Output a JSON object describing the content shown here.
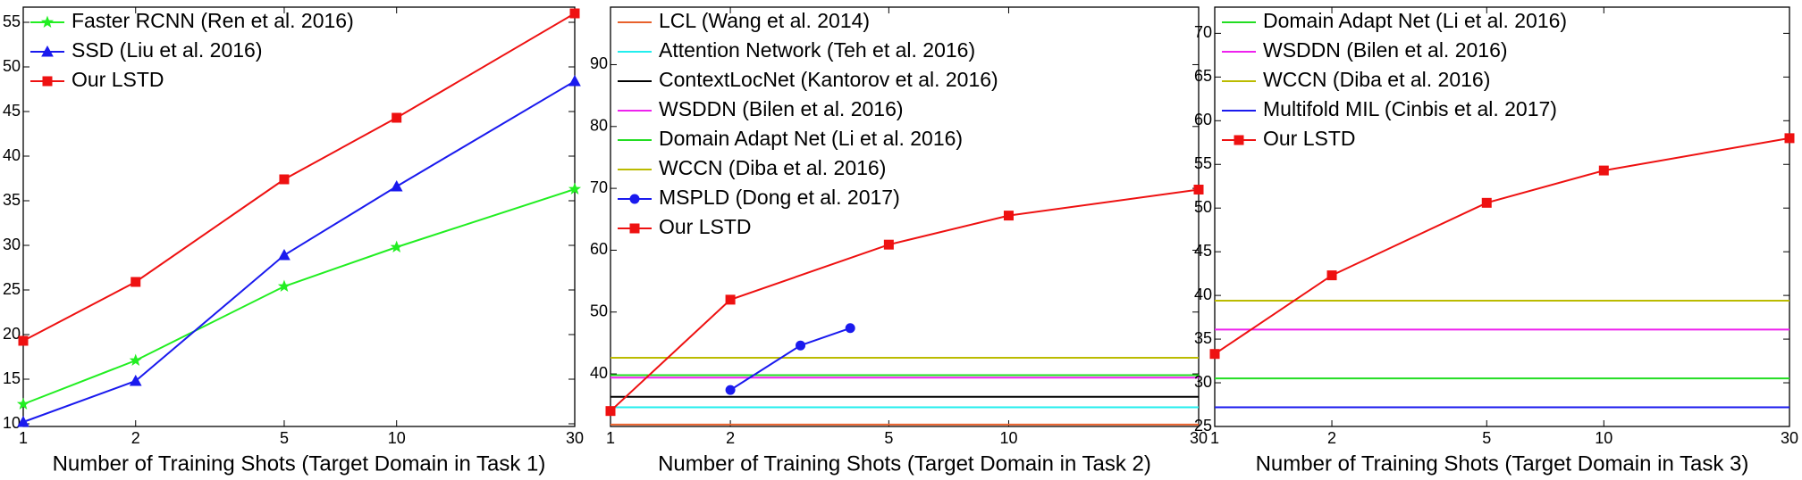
{
  "chart_data": [
    {
      "type": "line",
      "xlabel": "Number of Training Shots (Target Domain in Task 1)",
      "xscale": "log",
      "xlim": [
        1,
        30
      ],
      "xticks": [
        1,
        2,
        5,
        10,
        30
      ],
      "ylim": [
        9.7,
        56.7
      ],
      "yticks": [
        10,
        15,
        20,
        25,
        30,
        35,
        40,
        45,
        50,
        55
      ],
      "legend": "upper left",
      "series": [
        {
          "name": "Faster RCNN (Ren et al. 2016)",
          "color": "#22ee22",
          "marker": "star",
          "x": [
            1,
            2,
            5,
            10,
            30
          ],
          "values": [
            12.2,
            17.1,
            25.4,
            29.8,
            36.3
          ]
        },
        {
          "name": "SSD (Liu et al. 2016)",
          "color": "#1a1aee",
          "marker": "triangle",
          "x": [
            1,
            2,
            5,
            10,
            30
          ],
          "values": [
            10.2,
            14.8,
            28.9,
            36.6,
            48.4
          ]
        },
        {
          "name": "Our LSTD",
          "color": "#ee1111",
          "marker": "square",
          "x": [
            1,
            2,
            5,
            10,
            30
          ],
          "values": [
            19.3,
            25.9,
            37.4,
            44.3,
            56.0
          ]
        }
      ]
    },
    {
      "type": "line",
      "xlabel": "Number of Training Shots (Target Domain in Task 2)",
      "xscale": "log",
      "xlim": [
        1,
        30
      ],
      "xticks": [
        1,
        2,
        5,
        10,
        30
      ],
      "ylim": [
        31.5,
        99.3
      ],
      "yticks": [
        40,
        50,
        60,
        70,
        80,
        90
      ],
      "legend": "upper left",
      "series": [
        {
          "name": "LCL (Wang et al. 2014)",
          "color": "#e8612c",
          "marker": "none",
          "x": [
            1,
            30
          ],
          "values": [
            31.8,
            31.8
          ]
        },
        {
          "name": "Attention Network (Teh et al. 2016)",
          "color": "#22eeee",
          "marker": "none",
          "x": [
            1,
            30
          ],
          "values": [
            34.6,
            34.6
          ]
        },
        {
          "name": "ContextLocNet (Kantorov et al. 2016)",
          "color": "#000000",
          "marker": "none",
          "x": [
            1,
            30
          ],
          "values": [
            36.3,
            36.3
          ]
        },
        {
          "name": "WSDDN (Bilen et al. 2016)",
          "color": "#ee22ee",
          "marker": "none",
          "x": [
            1,
            30
          ],
          "values": [
            39.4,
            39.4
          ]
        },
        {
          "name": "Domain Adapt Net (Li et al. 2016)",
          "color": "#22dd22",
          "marker": "none",
          "x": [
            1,
            30
          ],
          "values": [
            39.8,
            39.8
          ]
        },
        {
          "name": "WCCN (Diba et al. 2016)",
          "color": "#bbbb00",
          "marker": "none",
          "x": [
            1,
            30
          ],
          "values": [
            42.6,
            42.6
          ]
        },
        {
          "name": "MSPLD (Dong et al. 2017)",
          "color": "#1a1aee",
          "marker": "circle",
          "x": [
            2,
            3,
            4
          ],
          "values": [
            37.4,
            44.6,
            47.4
          ]
        },
        {
          "name": "Our LSTD",
          "color": "#ee1111",
          "marker": "square",
          "x": [
            1,
            2,
            5,
            10,
            30
          ],
          "values": [
            34.0,
            52.0,
            60.9,
            65.6,
            69.8
          ]
        }
      ]
    },
    {
      "type": "line",
      "xlabel": "Number of Training Shots (Target Domain in Task 3)",
      "xscale": "log",
      "xlim": [
        1,
        30
      ],
      "xticks": [
        1,
        2,
        5,
        10,
        30
      ],
      "ylim": [
        25,
        73
      ],
      "yticks": [
        25,
        30,
        35,
        40,
        45,
        50,
        55,
        60,
        65,
        70
      ],
      "legend": "upper left",
      "series": [
        {
          "name": "Domain Adapt Net (Li et al. 2016)",
          "color": "#22dd22",
          "marker": "none",
          "x": [
            1,
            30
          ],
          "values": [
            30.5,
            30.5
          ]
        },
        {
          "name": "WSDDN (Bilen et al. 2016)",
          "color": "#ee22ee",
          "marker": "none",
          "x": [
            1,
            30
          ],
          "values": [
            36.1,
            36.1
          ]
        },
        {
          "name": "WCCN (Diba et al. 2016)",
          "color": "#bbbb00",
          "marker": "none",
          "x": [
            1,
            30
          ],
          "values": [
            39.4,
            39.4
          ]
        },
        {
          "name": "Multifold MIL (Cinbis et al. 2017)",
          "color": "#1a1aee",
          "marker": "none",
          "x": [
            1,
            30
          ],
          "values": [
            27.2,
            27.2
          ]
        },
        {
          "name": "Our LSTD",
          "color": "#ee1111",
          "marker": "square",
          "x": [
            1,
            2,
            5,
            10,
            30
          ],
          "values": [
            33.3,
            42.3,
            50.6,
            54.3,
            58.0
          ]
        }
      ]
    }
  ]
}
